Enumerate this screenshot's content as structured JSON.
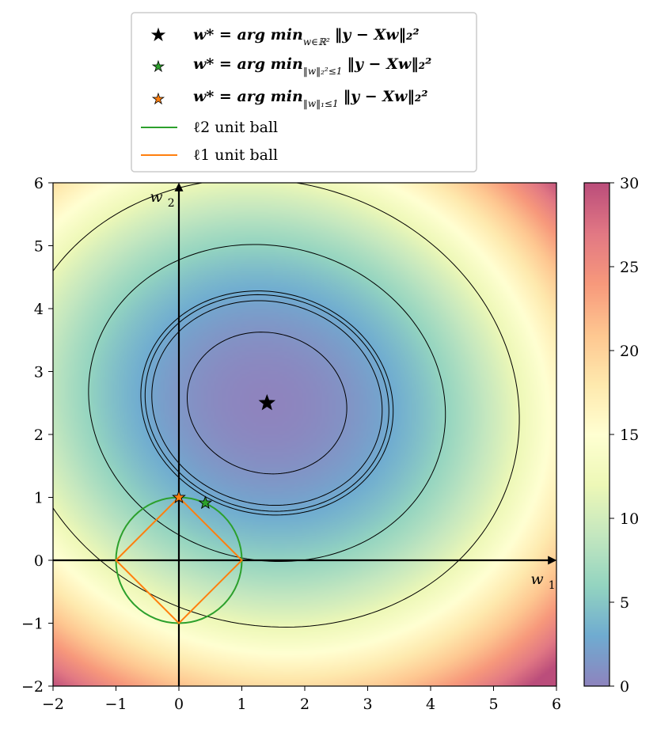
{
  "chart_data": {
    "type": "heatmap",
    "title": "",
    "xlabel": "w1",
    "ylabel": "w2",
    "xlim": [
      -2,
      6
    ],
    "ylim": [
      -2,
      6
    ],
    "x_ticks": [
      "−2",
      "−1",
      "0",
      "1",
      "2",
      "3",
      "4",
      "5",
      "6"
    ],
    "y_ticks": [
      "−2",
      "−1",
      "0",
      "1",
      "2",
      "3",
      "4",
      "5",
      "6"
    ],
    "colorbar": {
      "range": [
        0,
        30
      ],
      "ticks": [
        "0",
        "5",
        "10",
        "15",
        "20",
        "25",
        "30"
      ],
      "colormap": "Spectral_r"
    },
    "unconstrained_minimum": {
      "x": 1.4,
      "y": 2.5,
      "color": "#000000"
    },
    "l2_constrained_minimum": {
      "x": 0.42,
      "y": 0.91,
      "color": "#2ca02c"
    },
    "l1_constrained_minimum": {
      "x": 0.0,
      "y": 1.0,
      "color": "#ff7f0e"
    },
    "contour_levels": [
      1.2,
      2.5,
      2.8,
      3.0,
      6.0,
      12.0
    ],
    "l2_ball": {
      "radius": 1,
      "color": "#2ca02c"
    },
    "l1_ball": {
      "radius": 1,
      "color": "#ff7f0e"
    },
    "legend": {
      "placement": "top-center",
      "entries": [
        {
          "marker": "star",
          "color": "#000000",
          "label_lhs": "w* = arg min",
          "label_sub": "w∈ℝ²",
          "label_rhs": "‖y − Xw‖₂²"
        },
        {
          "marker": "star",
          "color": "#2ca02c",
          "label_lhs": "w* = arg min",
          "label_sub": "‖w‖₂²≤1",
          "label_rhs": "‖y − Xw‖₂²"
        },
        {
          "marker": "star",
          "color": "#ff7f0e",
          "label_lhs": "w* = arg min",
          "label_sub": "‖w‖₁≤1",
          "label_rhs": "‖y − Xw‖₂²"
        },
        {
          "marker": "line",
          "color": "#2ca02c",
          "label": "ℓ2 unit ball"
        },
        {
          "marker": "line",
          "color": "#ff7f0e",
          "label": "ℓ1 unit ball"
        }
      ]
    }
  }
}
